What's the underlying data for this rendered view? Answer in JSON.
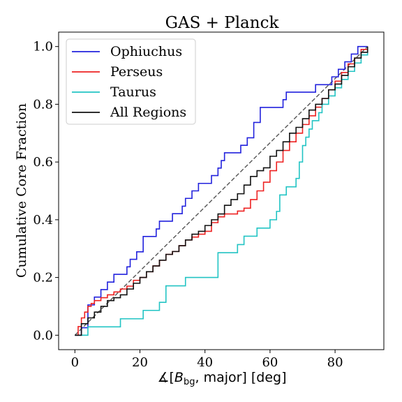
{
  "chart_data": {
    "type": "line",
    "title": "GAS + Planck",
    "ylabel": "Cumulative Core Fraction",
    "xlabel_prefix": "∡[",
    "xlabel_B": "B",
    "xlabel_sub": "bg",
    "xlabel_suffix": ", major] [deg]",
    "xlim": [
      -5,
      95
    ],
    "ylim": [
      -0.05,
      1.05
    ],
    "xticks": [
      0,
      20,
      40,
      60,
      80
    ],
    "xtick_labels": [
      "0",
      "20",
      "40",
      "60",
      "80"
    ],
    "yticks": [
      0.0,
      0.2,
      0.4,
      0.6,
      0.8,
      1.0
    ],
    "ytick_labels": [
      "0.0",
      "0.2",
      "0.4",
      "0.6",
      "0.8",
      "1.0"
    ],
    "grid": false,
    "legend_position": "top-left",
    "reference_line": {
      "x": [
        0,
        90
      ],
      "y": [
        0,
        1
      ],
      "style": "dashed",
      "color": "#555555"
    },
    "series": [
      {
        "name": "Ophiuchus",
        "color": "#2222dd",
        "x": [
          0,
          2,
          4,
          6,
          8,
          10,
          12,
          16,
          17,
          19,
          21,
          25,
          26,
          30,
          33,
          34,
          36,
          38,
          42,
          44,
          45,
          46,
          48,
          51,
          53,
          55,
          57,
          64,
          65,
          70,
          74,
          77,
          79,
          81,
          83,
          84,
          85,
          86,
          87,
          88,
          90
        ],
        "y": [
          0,
          0.026,
          0.105,
          0.132,
          0.158,
          0.184,
          0.211,
          0.237,
          0.263,
          0.289,
          0.342,
          0.368,
          0.395,
          0.421,
          0.447,
          0.474,
          0.5,
          0.526,
          0.553,
          0.579,
          0.605,
          0.632,
          0.632,
          0.658,
          0.684,
          0.737,
          0.789,
          0.816,
          0.842,
          0.842,
          0.868,
          0.868,
          0.895,
          0.921,
          0.947,
          0.947,
          0.974,
          0.974,
          1.0,
          1.0,
          1.0
        ]
      },
      {
        "name": "Perseus",
        "color": "#ee2222",
        "x": [
          0,
          1,
          2,
          3,
          4,
          5,
          6,
          8,
          10,
          12,
          14,
          16,
          18,
          20,
          22,
          24,
          26,
          28,
          30,
          32,
          34,
          36,
          38,
          40,
          42,
          44,
          46,
          48,
          50,
          52,
          54,
          56,
          58,
          60,
          62,
          64,
          66,
          68,
          70,
          72,
          74,
          76,
          78,
          80,
          82,
          84,
          86,
          88,
          90
        ],
        "y": [
          0,
          0.03,
          0.06,
          0.08,
          0.1,
          0.11,
          0.12,
          0.13,
          0.14,
          0.15,
          0.16,
          0.17,
          0.19,
          0.2,
          0.22,
          0.24,
          0.26,
          0.28,
          0.29,
          0.31,
          0.33,
          0.34,
          0.35,
          0.36,
          0.39,
          0.41,
          0.42,
          0.42,
          0.43,
          0.44,
          0.47,
          0.5,
          0.53,
          0.57,
          0.6,
          0.64,
          0.67,
          0.7,
          0.73,
          0.76,
          0.79,
          0.82,
          0.85,
          0.88,
          0.91,
          0.94,
          0.96,
          0.99,
          1.0
        ]
      },
      {
        "name": "Taurus",
        "color": "#22c4c4",
        "x": [
          0,
          4,
          6,
          14,
          21,
          26,
          28,
          34,
          44,
          50,
          52,
          56,
          60,
          62,
          63,
          65,
          68,
          69,
          70,
          71,
          72,
          73,
          75,
          76,
          78,
          80,
          82,
          84,
          86,
          88,
          90
        ],
        "y": [
          0,
          0.029,
          0.029,
          0.057,
          0.086,
          0.114,
          0.171,
          0.2,
          0.286,
          0.314,
          0.343,
          0.371,
          0.4,
          0.429,
          0.486,
          0.514,
          0.543,
          0.6,
          0.657,
          0.686,
          0.714,
          0.743,
          0.771,
          0.8,
          0.829,
          0.857,
          0.886,
          0.914,
          0.943,
          0.971,
          1.0
        ]
      },
      {
        "name": "All Regions",
        "color": "#111111",
        "x": [
          0,
          2,
          4,
          6,
          8,
          10,
          12,
          14,
          16,
          18,
          20,
          22,
          24,
          26,
          28,
          30,
          32,
          34,
          36,
          38,
          40,
          42,
          44,
          46,
          48,
          50,
          52,
          54,
          56,
          58,
          60,
          62,
          64,
          66,
          68,
          70,
          72,
          74,
          76,
          78,
          80,
          82,
          84,
          86,
          88,
          90
        ],
        "y": [
          0,
          0.04,
          0.06,
          0.08,
          0.1,
          0.12,
          0.13,
          0.14,
          0.16,
          0.18,
          0.2,
          0.22,
          0.24,
          0.26,
          0.28,
          0.29,
          0.31,
          0.33,
          0.35,
          0.36,
          0.38,
          0.4,
          0.42,
          0.45,
          0.47,
          0.49,
          0.52,
          0.55,
          0.57,
          0.58,
          0.62,
          0.64,
          0.67,
          0.7,
          0.72,
          0.75,
          0.78,
          0.8,
          0.82,
          0.85,
          0.87,
          0.9,
          0.93,
          0.96,
          0.98,
          1.0
        ]
      }
    ]
  }
}
